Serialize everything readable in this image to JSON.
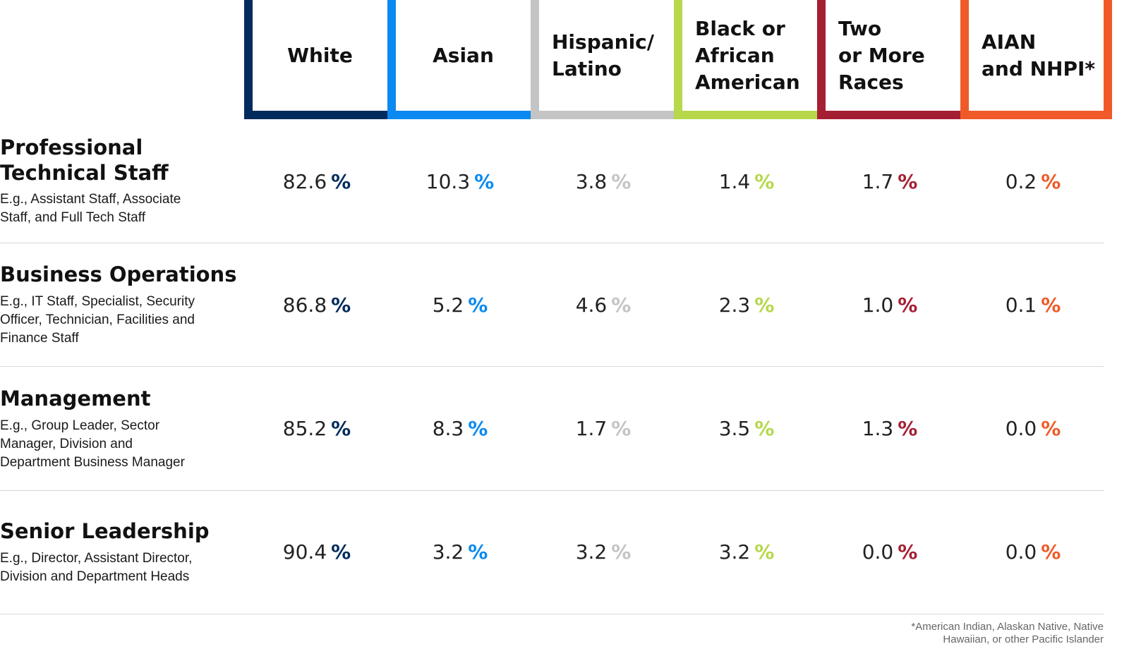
{
  "chart_data": {
    "type": "table",
    "columns": [
      {
        "label": "White",
        "color": "#002b5c"
      },
      {
        "label": "Asian",
        "color": "#0a8af0"
      },
      {
        "label": "Hispanic/\nLatino",
        "color": "#c4c4c4"
      },
      {
        "label": "Black or\nAfrican\nAmerican",
        "color": "#b6d84a"
      },
      {
        "label": "Two\nor More\nRaces",
        "color": "#a51f33"
      },
      {
        "label": "AIAN\nand NHPI*",
        "color": "#f05a28"
      }
    ],
    "rows": [
      {
        "title": "Professional\nTechnical Staff",
        "subtitle": "E.g., Assistant Staff, Associate\nStaff, and Full Tech Staff",
        "values": [
          "82.6",
          "10.3",
          "3.8",
          "1.4",
          "1.7",
          "0.2"
        ]
      },
      {
        "title": "Business Operations",
        "subtitle": "E.g., IT Staff, Specialist, Security\nOfficer, Technician, Facilities and\nFinance Staff",
        "values": [
          "86.8",
          "5.2",
          "4.6",
          "2.3",
          "1.0",
          "0.1"
        ]
      },
      {
        "title": "Management",
        "subtitle": "E.g., Group Leader, Sector\nManager, Division and\nDepartment Business Manager",
        "values": [
          "85.2",
          "8.3",
          "1.7",
          "3.5",
          "1.3",
          "0.0"
        ]
      },
      {
        "title": "Senior Leadership",
        "subtitle": "E.g., Director, Assistant Director,\nDivision and Department Heads",
        "values": [
          "90.4",
          "3.2",
          "3.2",
          "3.2",
          "0.0",
          "0.0"
        ]
      }
    ],
    "percent_sign": "%"
  },
  "footnote": "*American Indian, Alaskan Native, Native\nHawaiian, or other Pacific Islander"
}
